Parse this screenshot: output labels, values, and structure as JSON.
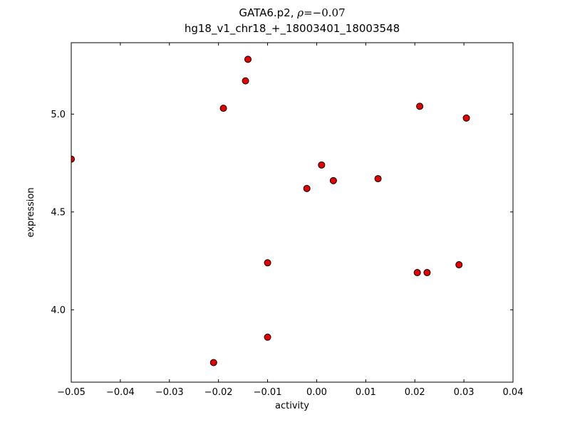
{
  "chart_data": {
    "type": "scatter",
    "title_prefix": "GATA6.p2, ",
    "title_rho": "ρ",
    "title_suffix": "=−0.07",
    "title_full": "GATA6.p2, ρ=−0.07",
    "subtitle": "hg18_v1_chr18_+_18003401_18003548",
    "xlabel": "activity",
    "ylabel": "expression",
    "xlim": [
      -0.05,
      0.04
    ],
    "ylim": [
      3.63,
      5.365
    ],
    "xtick_values": [
      -0.05,
      -0.04,
      -0.03,
      -0.02,
      -0.01,
      0.0,
      0.01,
      0.02,
      0.03,
      0.04
    ],
    "xtick_labels": [
      "−0.05",
      "−0.04",
      "−0.03",
      "−0.02",
      "−0.01",
      "0.00",
      "0.01",
      "0.02",
      "0.03",
      "0.04"
    ],
    "ytick_values": [
      4.0,
      4.5,
      5.0
    ],
    "ytick_labels": [
      "4.0",
      "4.5",
      "5.0"
    ],
    "grid": false,
    "legend_position": "none",
    "frame_color": "#000000",
    "background_color": "#ffffff",
    "marker": {
      "shape": "circle",
      "fill": "#e60000",
      "edge": "#000000",
      "radius": 4.5,
      "edge_width": 1
    },
    "points": [
      {
        "x": -0.05,
        "y": 4.77
      },
      {
        "x": -0.019,
        "y": 5.03
      },
      {
        "x": -0.014,
        "y": 5.28
      },
      {
        "x": -0.0145,
        "y": 5.17
      },
      {
        "x": -0.01,
        "y": 4.24
      },
      {
        "x": -0.01,
        "y": 3.86
      },
      {
        "x": -0.021,
        "y": 3.73
      },
      {
        "x": -0.002,
        "y": 4.62
      },
      {
        "x": 0.001,
        "y": 4.74
      },
      {
        "x": 0.0034,
        "y": 4.66
      },
      {
        "x": 0.0125,
        "y": 4.67
      },
      {
        "x": 0.021,
        "y": 5.04
      },
      {
        "x": 0.0205,
        "y": 4.19
      },
      {
        "x": 0.0225,
        "y": 4.19
      },
      {
        "x": 0.029,
        "y": 4.23
      },
      {
        "x": 0.0305,
        "y": 4.98
      }
    ]
  }
}
